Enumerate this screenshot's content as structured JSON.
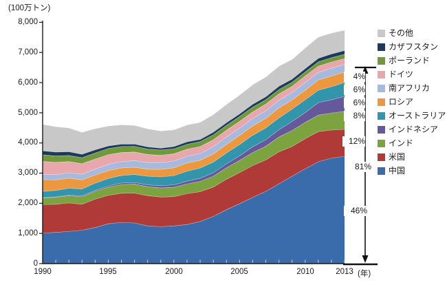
{
  "chart_data": {
    "type": "area",
    "stacked": true,
    "unit_label": "(100万トン)",
    "x_axis_suffix": "(年)",
    "ylim": [
      0,
      8000
    ],
    "grid": false,
    "legend_position": "right",
    "ytick_labels": [
      "0",
      "1,000",
      "2,000",
      "3,000",
      "4,000",
      "5,000",
      "6,000",
      "7,000",
      "8,000"
    ],
    "xtick_labels": [
      "1990",
      "1995",
      "2000",
      "2005",
      "2010",
      "2013"
    ],
    "years": [
      1990,
      1991,
      1992,
      1993,
      1994,
      1995,
      1996,
      1997,
      1998,
      1999,
      2000,
      2001,
      2002,
      2003,
      2004,
      2005,
      2006,
      2007,
      2008,
      2009,
      2010,
      2011,
      2012,
      2013
    ],
    "series": [
      {
        "name": "中国",
        "color": "#3a6cab",
        "values": [
          1010,
          1040,
          1070,
          1110,
          1200,
          1325,
          1370,
          1350,
          1255,
          1230,
          1255,
          1300,
          1400,
          1570,
          1790,
          1990,
          2200,
          2400,
          2650,
          2900,
          3150,
          3380,
          3500,
          3560
        ]
      },
      {
        "name": "米国",
        "color": "#b03a37",
        "values": [
          950,
          930,
          945,
          860,
          940,
          940,
          965,
          990,
          1000,
          980,
          970,
          1020,
          990,
          970,
          1010,
          1030,
          1055,
          1040,
          1060,
          985,
          995,
          1000,
          930,
          890
        ]
      },
      {
        "name": "インド",
        "color": "#7ca33f",
        "values": [
          220,
          230,
          240,
          250,
          260,
          275,
          290,
          300,
          300,
          305,
          310,
          325,
          340,
          360,
          380,
          405,
          430,
          455,
          490,
          530,
          540,
          545,
          565,
          605
        ]
      },
      {
        "name": "インドネシア",
        "color": "#65589b",
        "values": [
          10,
          15,
          22,
          28,
          32,
          42,
          50,
          55,
          60,
          72,
          78,
          92,
          102,
          115,
          130,
          150,
          190,
          215,
          240,
          300,
          325,
          415,
          440,
          490
        ]
      },
      {
        "name": "オーストラリア",
        "color": "#3295ac",
        "values": [
          205,
          215,
          225,
          228,
          240,
          244,
          250,
          262,
          285,
          292,
          306,
          330,
          342,
          350,
          362,
          375,
          385,
          392,
          392,
          410,
          422,
          412,
          432,
          460
        ]
      },
      {
        "name": "ロシア",
        "color": "#eb9841",
        "values": [
          395,
          350,
          335,
          305,
          270,
          262,
          252,
          242,
          232,
          250,
          260,
          270,
          256,
          276,
          282,
          300,
          310,
          315,
          330,
          302,
          322,
          336,
          356,
          350
        ]
      },
      {
        "name": "南アフリカ",
        "color": "#a7badd",
        "values": [
          175,
          178,
          176,
          185,
          195,
          206,
          206,
          220,
          224,
          224,
          225,
          224,
          222,
          238,
          244,
          245,
          245,
          250,
          253,
          250,
          255,
          255,
          259,
          256
        ]
      },
      {
        "name": "ドイツ",
        "color": "#e8a7ad",
        "values": [
          430,
          405,
          375,
          350,
          335,
          320,
          305,
          285,
          265,
          245,
          240,
          235,
          234,
          230,
          230,
          225,
          220,
          225,
          215,
          205,
          215,
          210,
          205,
          190
        ]
      },
      {
        "name": "ポーランド",
        "color": "#71993c",
        "values": [
          215,
          210,
          200,
          200,
          200,
          205,
          200,
          190,
          180,
          172,
          164,
          164,
          160,
          164,
          160,
          160,
          156,
          146,
          144,
          135,
          133,
          140,
          144,
          145
        ]
      },
      {
        "name": "カザフスタン",
        "color": "#1c3a5e",
        "values": [
          130,
          128,
          124,
          110,
          104,
          85,
          76,
          72,
          70,
          60,
          75,
          80,
          74,
          84,
          86,
          86,
          96,
          96,
          110,
          100,
          110,
          116,
          120,
          120
        ]
      },
      {
        "name": "その他",
        "color": "#c8c8c8",
        "values": [
          880,
          840,
          790,
          730,
          700,
          660,
          640,
          620,
          600,
          570,
          555,
          560,
          565,
          585,
          605,
          625,
          645,
          655,
          665,
          655,
          685,
          705,
          695,
          675
        ]
      }
    ],
    "share_labels": [
      "4%",
      "6%",
      "6%",
      "8%",
      "12%",
      "81%",
      "46%"
    ]
  }
}
